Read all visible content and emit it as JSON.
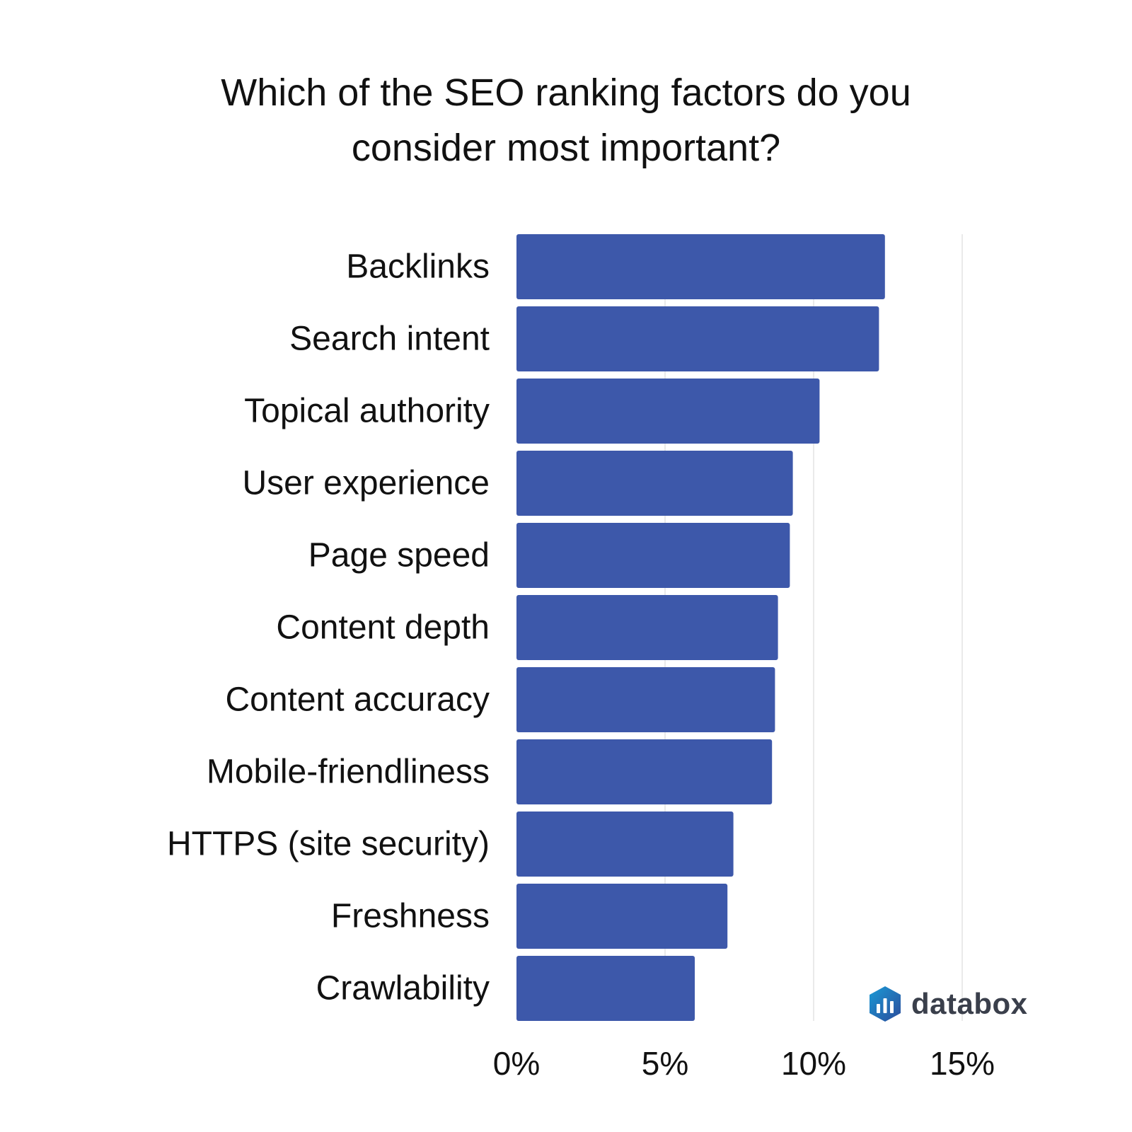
{
  "chart_data": {
    "type": "bar",
    "orientation": "horizontal",
    "title": "Which of the SEO ranking factors do you consider most important?",
    "title_lines": [
      "Which of the SEO ranking factors do you",
      "consider most important?"
    ],
    "categories": [
      "Backlinks",
      "Search intent",
      "Topical authority",
      "User experience",
      "Page speed",
      "Content depth",
      "Content accuracy",
      "Mobile-friendliness",
      "HTTPS (site security)",
      "Freshness",
      "Crawlability"
    ],
    "values": [
      12.4,
      12.2,
      10.2,
      9.3,
      9.2,
      8.8,
      8.7,
      8.6,
      7.3,
      7.1,
      6.0
    ],
    "xlim": [
      0,
      15
    ],
    "xticks": [
      0,
      5,
      10,
      15
    ],
    "xtick_labels": [
      "0%",
      "5%",
      "10%",
      "15%"
    ],
    "xlabel": "",
    "ylabel": "",
    "grid": "vertical",
    "bar_color": "#3d58aa",
    "grid_color": "#e3e3e3"
  },
  "brand": {
    "name": "databox",
    "icon": "databox-logo-icon"
  }
}
